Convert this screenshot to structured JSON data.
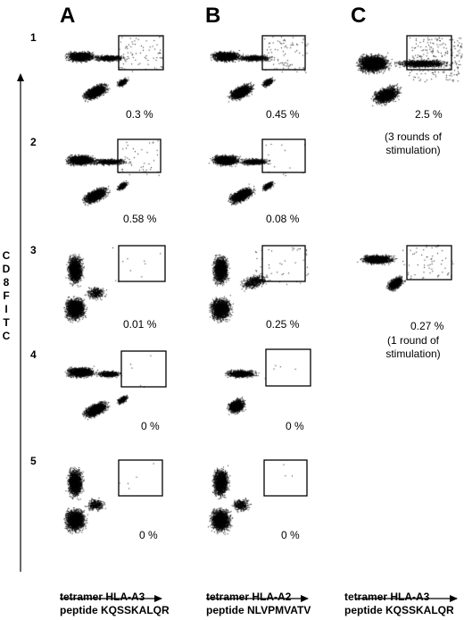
{
  "columns": [
    {
      "letter": "A",
      "xlabel_line1": "tetramer HLA-A3",
      "xlabel_line2": "peptide KQSSKALQR"
    },
    {
      "letter": "B",
      "xlabel_line1": "tetramer HLA-A2",
      "xlabel_line2": "peptide NLVPMVATV"
    },
    {
      "letter": "C",
      "xlabel_line1": "tetramer HLA-A3",
      "xlabel_line2": "peptide KQSSKALQR"
    }
  ],
  "rows": [
    "1",
    "2",
    "3",
    "4",
    "5"
  ],
  "y_axis_label": [
    "C",
    "D",
    "8",
    "F",
    "I",
    "T",
    "C"
  ],
  "panels": [
    {
      "id": "A1",
      "percent": "0.3 %"
    },
    {
      "id": "B1",
      "percent": "0.45 %"
    },
    {
      "id": "C1",
      "percent": "2.5 %",
      "note": [
        "(3 rounds of",
        "stimulation)"
      ]
    },
    {
      "id": "A2",
      "percent": "0.58 %"
    },
    {
      "id": "B2",
      "percent": "0.08 %"
    },
    {
      "id": "A3",
      "percent": "0.01 %"
    },
    {
      "id": "B3",
      "percent": "0.25 %"
    },
    {
      "id": "C3",
      "percent": "0.27 %",
      "note": [
        "(1 round of",
        "stimulation)"
      ]
    },
    {
      "id": "A4",
      "percent": "0 %"
    },
    {
      "id": "B4",
      "percent": "0 %"
    },
    {
      "id": "A5",
      "percent": "0 %"
    },
    {
      "id": "B5",
      "percent": "0 %"
    }
  ]
}
